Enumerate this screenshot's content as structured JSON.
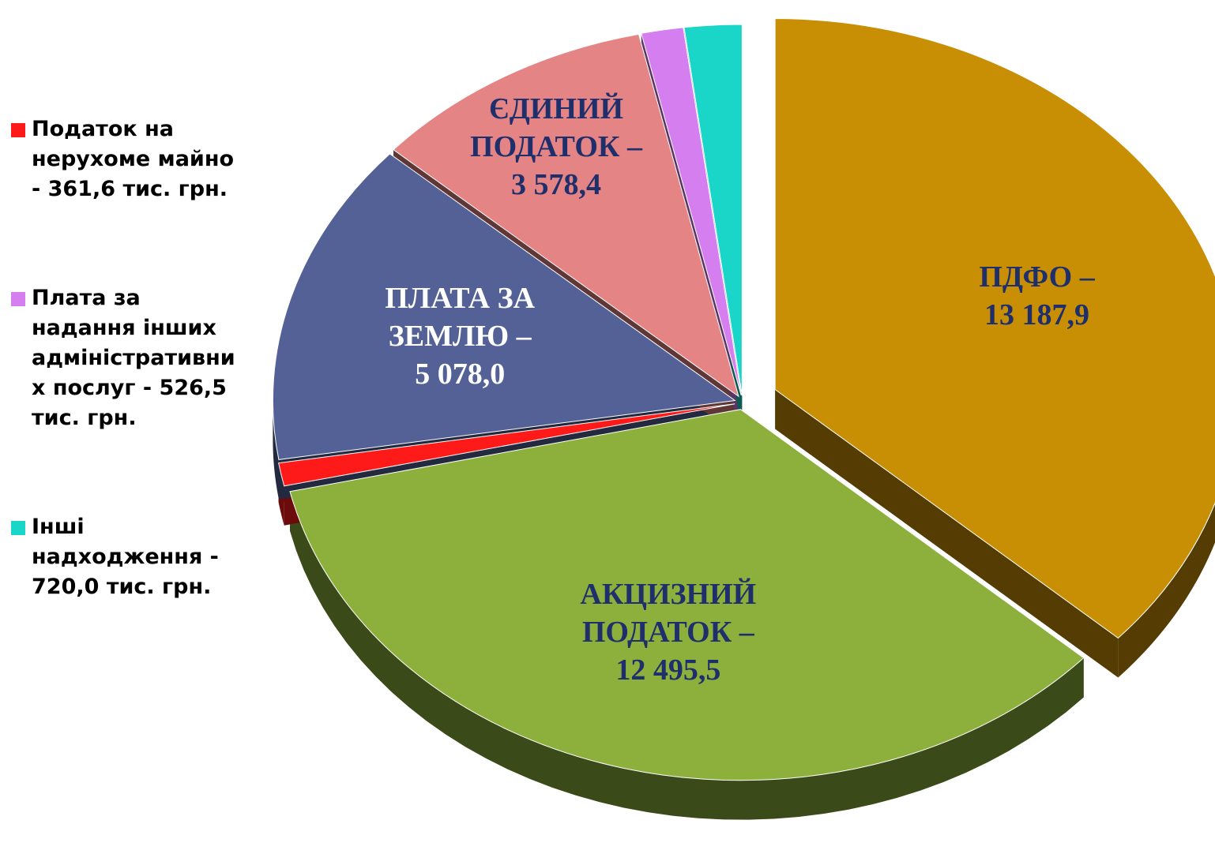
{
  "chart_data": {
    "type": "pie",
    "categories": [
      "ПДФО –",
      "АКЦИЗНИЙ ПОДАТОК –",
      "Податок  на нерухоме майно -",
      "ПЛАТА  ЗА ЗЕМЛЮ –",
      "ЄДИНИЙ ПОДАТОК –",
      "Плата за надання інших адміністративних послуг   -",
      "Інші надходження -"
    ],
    "values": [
      13187.9,
      12495.5,
      361.6,
      5078.0,
      3578.4,
      526.5,
      720.0
    ],
    "value_labels": [
      "13 187,9",
      "12 495,5",
      "361,6",
      "5 078,0",
      "3 578,4",
      "526,5",
      "720,0"
    ],
    "colors": [
      "#c98f04",
      "#8db03c",
      "#ff1a1a",
      "#536196",
      "#e58484",
      "#d57ef0",
      "#1ad6c8"
    ],
    "label_colors": [
      "#1f2f6b",
      "#1f2f6b",
      "#000000",
      "#ffffff",
      "#1f2f6b",
      "#000000",
      "#000000"
    ],
    "unit": "тис. грн.",
    "legend": "left"
  }
}
